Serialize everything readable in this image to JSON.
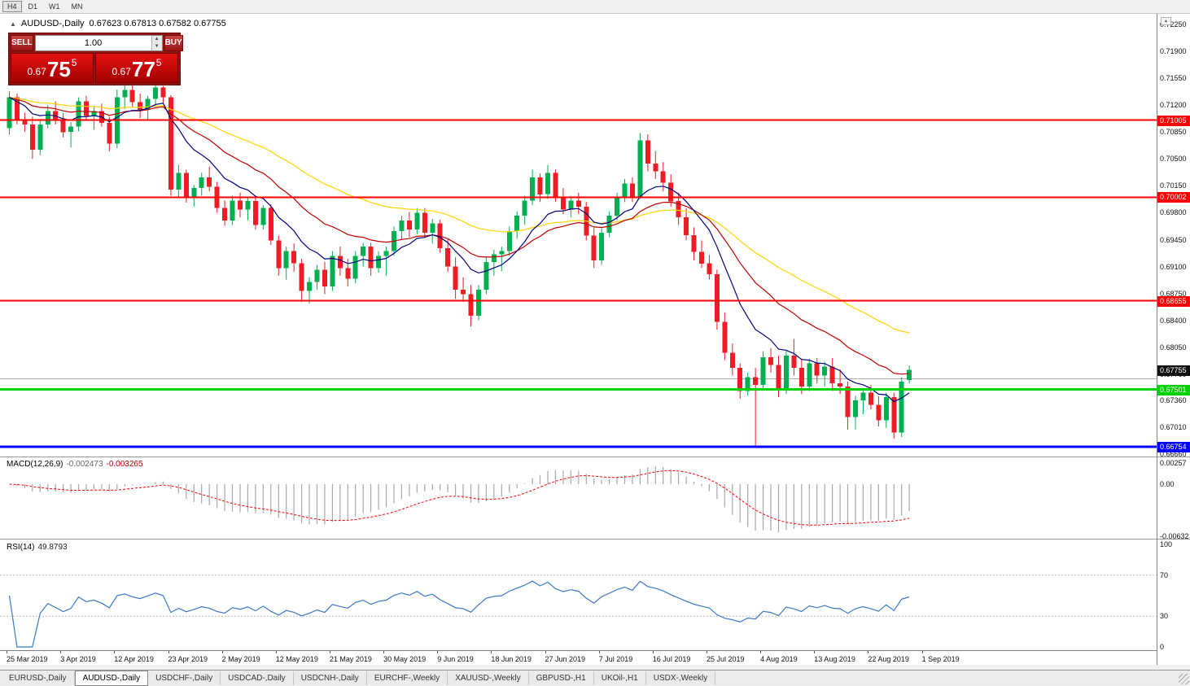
{
  "toolbar": {
    "timeframes": [
      {
        "label": "H4",
        "active": true
      },
      {
        "label": "D1",
        "active": false
      },
      {
        "label": "W1",
        "active": false
      },
      {
        "label": "MN",
        "active": false
      }
    ]
  },
  "chart_header": {
    "collapse_arrow": "▲",
    "symbol": "AUDUSD-,Daily",
    "ohlc": "0.67623 0.67813 0.67582 0.67755"
  },
  "trade_panel": {
    "sell_label": "SELL",
    "buy_label": "BUY",
    "volume": "1.00",
    "spin_up": "▲",
    "spin_down": "▼",
    "sell_price": {
      "prefix": "0.67",
      "big": "75",
      "sup": "5"
    },
    "buy_price": {
      "prefix": "0.67",
      "big": "77",
      "sup": "5"
    }
  },
  "misc": {
    "chart_button": "▴"
  },
  "price_axis": {
    "ticks": [
      "0.72250",
      "0.71900",
      "0.71550",
      "0.71200",
      "0.70850",
      "0.70500",
      "0.70150",
      "0.69800",
      "0.69450",
      "0.69100",
      "0.68750",
      "0.68400",
      "0.68050",
      "0.67700",
      "0.67360",
      "0.67010",
      "0.66660"
    ],
    "current_bid_tag": {
      "label": "0.67755",
      "price": 0.67755,
      "bg": "#111111"
    }
  },
  "hlines": [
    {
      "price": 0.71005,
      "label": "0.71005",
      "color": "#ff0000",
      "width": 2
    },
    {
      "price": 0.70002,
      "label": "0.70002",
      "color": "#ff0000",
      "width": 2
    },
    {
      "price": 0.68655,
      "label": "0.68655",
      "color": "#ff0000",
      "width": 2
    },
    {
      "price": 0.6764,
      "label": "",
      "color": "#ababab",
      "width": 1
    },
    {
      "price": 0.67501,
      "label": "0.67501",
      "color": "#00d200",
      "width": 3
    },
    {
      "price": 0.66754,
      "label": "0.66754",
      "color": "#0000ff",
      "width": 3
    }
  ],
  "indicators": {
    "macd": {
      "name": "MACD(12,26,9)",
      "value_main": "-0.002473",
      "value_signal": "-0.003265",
      "axis_ticks": [
        "0.00257",
        "0.00",
        "-0.00632"
      ],
      "axis_values": [
        0.00257,
        0,
        -0.00632
      ],
      "fast": 12,
      "slow": 26,
      "smoothing": 9
    },
    "rsi": {
      "name": "RSI(14)",
      "value": "49.8793",
      "axis_ticks": [
        "100",
        "70",
        "30",
        "0"
      ],
      "axis_values": [
        100,
        70,
        30,
        0
      ],
      "levels": [
        70,
        30
      ],
      "period": 14
    }
  },
  "date_axis": {
    "labels": [
      "25 Mar 2019",
      "3 Apr 2019",
      "12 Apr 2019",
      "23 Apr 2019",
      "2 May 2019",
      "12 May 2019",
      "21 May 2019",
      "30 May 2019",
      "9 Jun 2019",
      "18 Jun 2019",
      "27 Jun 2019",
      "7 Jul 2019",
      "16 Jul 2019",
      "25 Jul 2019",
      "4 Aug 2019",
      "13 Aug 2019",
      "22 Aug 2019",
      "1 Sep 2019"
    ]
  },
  "tabs": [
    {
      "label": "EURUSD-,Daily",
      "active": false
    },
    {
      "label": "AUDUSD-,Daily",
      "active": true
    },
    {
      "label": "USDCHF-,Daily",
      "active": false
    },
    {
      "label": "USDCAD-,Daily",
      "active": false
    },
    {
      "label": "USDCNH-,Daily",
      "active": false
    },
    {
      "label": "EURCHF-,Weekly",
      "active": false
    },
    {
      "label": "XAUUSD-,Weekly",
      "active": false
    },
    {
      "label": "GBPUSD-,H1",
      "active": false
    },
    {
      "label": "UKOil-,H1",
      "active": false
    },
    {
      "label": "USDX-,Weekly",
      "active": false
    }
  ],
  "colors": {
    "bull": "#00b050",
    "bear": "#ee1c25",
    "ma_fast": "#000080",
    "ma_mid": "#c00000",
    "ma_slow": "#ffd400",
    "macd_hist": "#a8a8a8",
    "macd_signal": "#ff0000",
    "rsi_line": "#3c78c8",
    "resistance": "#ff0000",
    "support_green": "#00d200",
    "support_blue": "#0000ff"
  },
  "chart_data": {
    "type": "candlestick",
    "symbol": "AUDUSD",
    "timeframe": "Daily",
    "visible_range": {
      "start": "25 Mar 2019",
      "end": "4 Sep 2019"
    },
    "price_range": [
      0.6666,
      0.7225
    ],
    "moving_averages": [
      {
        "period": 45,
        "color_key": "ma_slow"
      },
      {
        "period": 22,
        "color_key": "ma_mid"
      },
      {
        "period": 10,
        "color_key": "ma_fast"
      }
    ],
    "candles": [
      [
        0.709,
        0.7138,
        0.7082,
        0.713
      ],
      [
        0.713,
        0.7135,
        0.7095,
        0.71
      ],
      [
        0.71,
        0.711,
        0.7085,
        0.7095
      ],
      [
        0.7095,
        0.7105,
        0.705,
        0.7062
      ],
      [
        0.7062,
        0.71,
        0.7055,
        0.7095
      ],
      [
        0.7095,
        0.712,
        0.709,
        0.7112
      ],
      [
        0.7112,
        0.7125,
        0.7095,
        0.71
      ],
      [
        0.71,
        0.711,
        0.7078,
        0.7085
      ],
      [
        0.7085,
        0.7098,
        0.7065,
        0.7092
      ],
      [
        0.7092,
        0.713,
        0.7086,
        0.7125
      ],
      [
        0.7125,
        0.7132,
        0.71,
        0.7106
      ],
      [
        0.7106,
        0.7118,
        0.7088,
        0.7112
      ],
      [
        0.7112,
        0.7122,
        0.7092,
        0.7097
      ],
      [
        0.7097,
        0.7105,
        0.706,
        0.707
      ],
      [
        0.707,
        0.714,
        0.7064,
        0.713
      ],
      [
        0.713,
        0.7147,
        0.7115,
        0.714
      ],
      [
        0.714,
        0.7148,
        0.7118,
        0.7124
      ],
      [
        0.7124,
        0.7135,
        0.7103,
        0.7114
      ],
      [
        0.7114,
        0.7132,
        0.71,
        0.7128
      ],
      [
        0.7128,
        0.7146,
        0.7119,
        0.7143
      ],
      [
        0.7143,
        0.7145,
        0.7122,
        0.713
      ],
      [
        0.713,
        0.7133,
        0.7002,
        0.701
      ],
      [
        0.701,
        0.7042,
        0.7,
        0.7032
      ],
      [
        0.7032,
        0.7036,
        0.6993,
        0.7
      ],
      [
        0.7,
        0.7016,
        0.6988,
        0.7012
      ],
      [
        0.7012,
        0.7032,
        0.7002,
        0.7026
      ],
      [
        0.7026,
        0.704,
        0.7008,
        0.7014
      ],
      [
        0.7014,
        0.702,
        0.698,
        0.6986
      ],
      [
        0.6986,
        0.6996,
        0.6963,
        0.697
      ],
      [
        0.697,
        0.7002,
        0.6964,
        0.6996
      ],
      [
        0.6996,
        0.7006,
        0.6974,
        0.6984
      ],
      [
        0.6984,
        0.7,
        0.697,
        0.6995
      ],
      [
        0.6995,
        0.7,
        0.6958,
        0.6964
      ],
      [
        0.6964,
        0.699,
        0.6958,
        0.6986
      ],
      [
        0.6986,
        0.6991,
        0.6938,
        0.6944
      ],
      [
        0.6944,
        0.695,
        0.6898,
        0.6908
      ],
      [
        0.6908,
        0.6936,
        0.6893,
        0.693
      ],
      [
        0.693,
        0.694,
        0.6903,
        0.6914
      ],
      [
        0.6914,
        0.692,
        0.6864,
        0.6878
      ],
      [
        0.6878,
        0.6896,
        0.6862,
        0.689
      ],
      [
        0.689,
        0.6912,
        0.688,
        0.6906
      ],
      [
        0.6906,
        0.6916,
        0.6874,
        0.6884
      ],
      [
        0.6884,
        0.693,
        0.6878,
        0.6924
      ],
      [
        0.6924,
        0.6936,
        0.6898,
        0.6908
      ],
      [
        0.6908,
        0.692,
        0.6884,
        0.6894
      ],
      [
        0.6894,
        0.693,
        0.6888,
        0.6924
      ],
      [
        0.6924,
        0.6941,
        0.691,
        0.6936
      ],
      [
        0.6936,
        0.6941,
        0.6898,
        0.6908
      ],
      [
        0.6908,
        0.693,
        0.6902,
        0.6924
      ],
      [
        0.6924,
        0.6936,
        0.6898,
        0.693
      ],
      [
        0.693,
        0.6962,
        0.6924,
        0.6956
      ],
      [
        0.6956,
        0.6976,
        0.6946,
        0.697
      ],
      [
        0.697,
        0.6981,
        0.6948,
        0.6958
      ],
      [
        0.6958,
        0.6986,
        0.6952,
        0.698
      ],
      [
        0.698,
        0.6986,
        0.6948,
        0.6954
      ],
      [
        0.6954,
        0.6972,
        0.694,
        0.6966
      ],
      [
        0.6966,
        0.6971,
        0.6928,
        0.6934
      ],
      [
        0.6934,
        0.6946,
        0.6903,
        0.691
      ],
      [
        0.691,
        0.6922,
        0.6868,
        0.688
      ],
      [
        0.688,
        0.6896,
        0.6864,
        0.6874
      ],
      [
        0.6874,
        0.6886,
        0.6832,
        0.6846
      ],
      [
        0.6846,
        0.6886,
        0.684,
        0.688
      ],
      [
        0.688,
        0.6922,
        0.6874,
        0.6916
      ],
      [
        0.6916,
        0.6932,
        0.6898,
        0.6926
      ],
      [
        0.6926,
        0.6936,
        0.6904,
        0.693
      ],
      [
        0.693,
        0.6962,
        0.6924,
        0.6956
      ],
      [
        0.6956,
        0.6982,
        0.6946,
        0.6976
      ],
      [
        0.6976,
        0.7002,
        0.6964,
        0.6996
      ],
      [
        0.6996,
        0.7036,
        0.699,
        0.7026
      ],
      [
        0.7026,
        0.7031,
        0.6994,
        0.7004
      ],
      [
        0.7004,
        0.7042,
        0.6998,
        0.7032
      ],
      [
        0.7032,
        0.7036,
        0.6994,
        0.7
      ],
      [
        0.7,
        0.7012,
        0.6978,
        0.6984
      ],
      [
        0.6984,
        0.7002,
        0.6974,
        0.6996
      ],
      [
        0.6996,
        0.7006,
        0.6978,
        0.6988
      ],
      [
        0.6988,
        0.6994,
        0.6944,
        0.695
      ],
      [
        0.695,
        0.696,
        0.6908,
        0.6918
      ],
      [
        0.6918,
        0.696,
        0.6912,
        0.6954
      ],
      [
        0.6954,
        0.6982,
        0.6948,
        0.6976
      ],
      [
        0.6976,
        0.7006,
        0.697,
        0.7
      ],
      [
        0.7,
        0.7024,
        0.6994,
        0.7018
      ],
      [
        0.7018,
        0.7026,
        0.6994,
        0.7001
      ],
      [
        0.7001,
        0.7084,
        0.6998,
        0.7074
      ],
      [
        0.7074,
        0.7082,
        0.7034,
        0.7044
      ],
      [
        0.7044,
        0.706,
        0.7024,
        0.7034
      ],
      [
        0.7034,
        0.7046,
        0.7008,
        0.7019
      ],
      [
        0.7019,
        0.703,
        0.6988,
        0.6995
      ],
      [
        0.6995,
        0.7006,
        0.6964,
        0.6974
      ],
      [
        0.6974,
        0.6986,
        0.6944,
        0.6951
      ],
      [
        0.6951,
        0.6961,
        0.6918,
        0.6929
      ],
      [
        0.6929,
        0.6944,
        0.6908,
        0.6914
      ],
      [
        0.6914,
        0.6925,
        0.6893,
        0.69
      ],
      [
        0.69,
        0.6906,
        0.6828,
        0.6838
      ],
      [
        0.6838,
        0.685,
        0.6788,
        0.6798
      ],
      [
        0.6798,
        0.681,
        0.6768,
        0.6778
      ],
      [
        0.6778,
        0.6784,
        0.6738,
        0.6748
      ],
      [
        0.6748,
        0.6772,
        0.6742,
        0.6766
      ],
      [
        0.6766,
        0.6778,
        0.6677,
        0.6756
      ],
      [
        0.6756,
        0.68,
        0.675,
        0.6792
      ],
      [
        0.6792,
        0.6804,
        0.6772,
        0.6782
      ],
      [
        0.6782,
        0.6794,
        0.674,
        0.675
      ],
      [
        0.675,
        0.68,
        0.6744,
        0.6794
      ],
      [
        0.6794,
        0.6816,
        0.6768,
        0.6778
      ],
      [
        0.6778,
        0.679,
        0.6744,
        0.6754
      ],
      [
        0.6754,
        0.679,
        0.6748,
        0.6784
      ],
      [
        0.6784,
        0.6791,
        0.6758,
        0.6768
      ],
      [
        0.6768,
        0.6786,
        0.6754,
        0.678
      ],
      [
        0.678,
        0.6791,
        0.6748,
        0.6758
      ],
      [
        0.6758,
        0.6776,
        0.6744,
        0.6754
      ],
      [
        0.6754,
        0.676,
        0.6698,
        0.6714
      ],
      [
        0.6714,
        0.6742,
        0.6698,
        0.6736
      ],
      [
        0.6736,
        0.6752,
        0.6718,
        0.6746
      ],
      [
        0.6746,
        0.6756,
        0.6724,
        0.673
      ],
      [
        0.673,
        0.6741,
        0.6702,
        0.671
      ],
      [
        0.671,
        0.6746,
        0.67,
        0.674
      ],
      [
        0.674,
        0.6746,
        0.6686,
        0.6694
      ],
      [
        0.6694,
        0.6766,
        0.6688,
        0.676
      ],
      [
        0.67623,
        0.67813,
        0.67582,
        0.67755
      ]
    ]
  }
}
